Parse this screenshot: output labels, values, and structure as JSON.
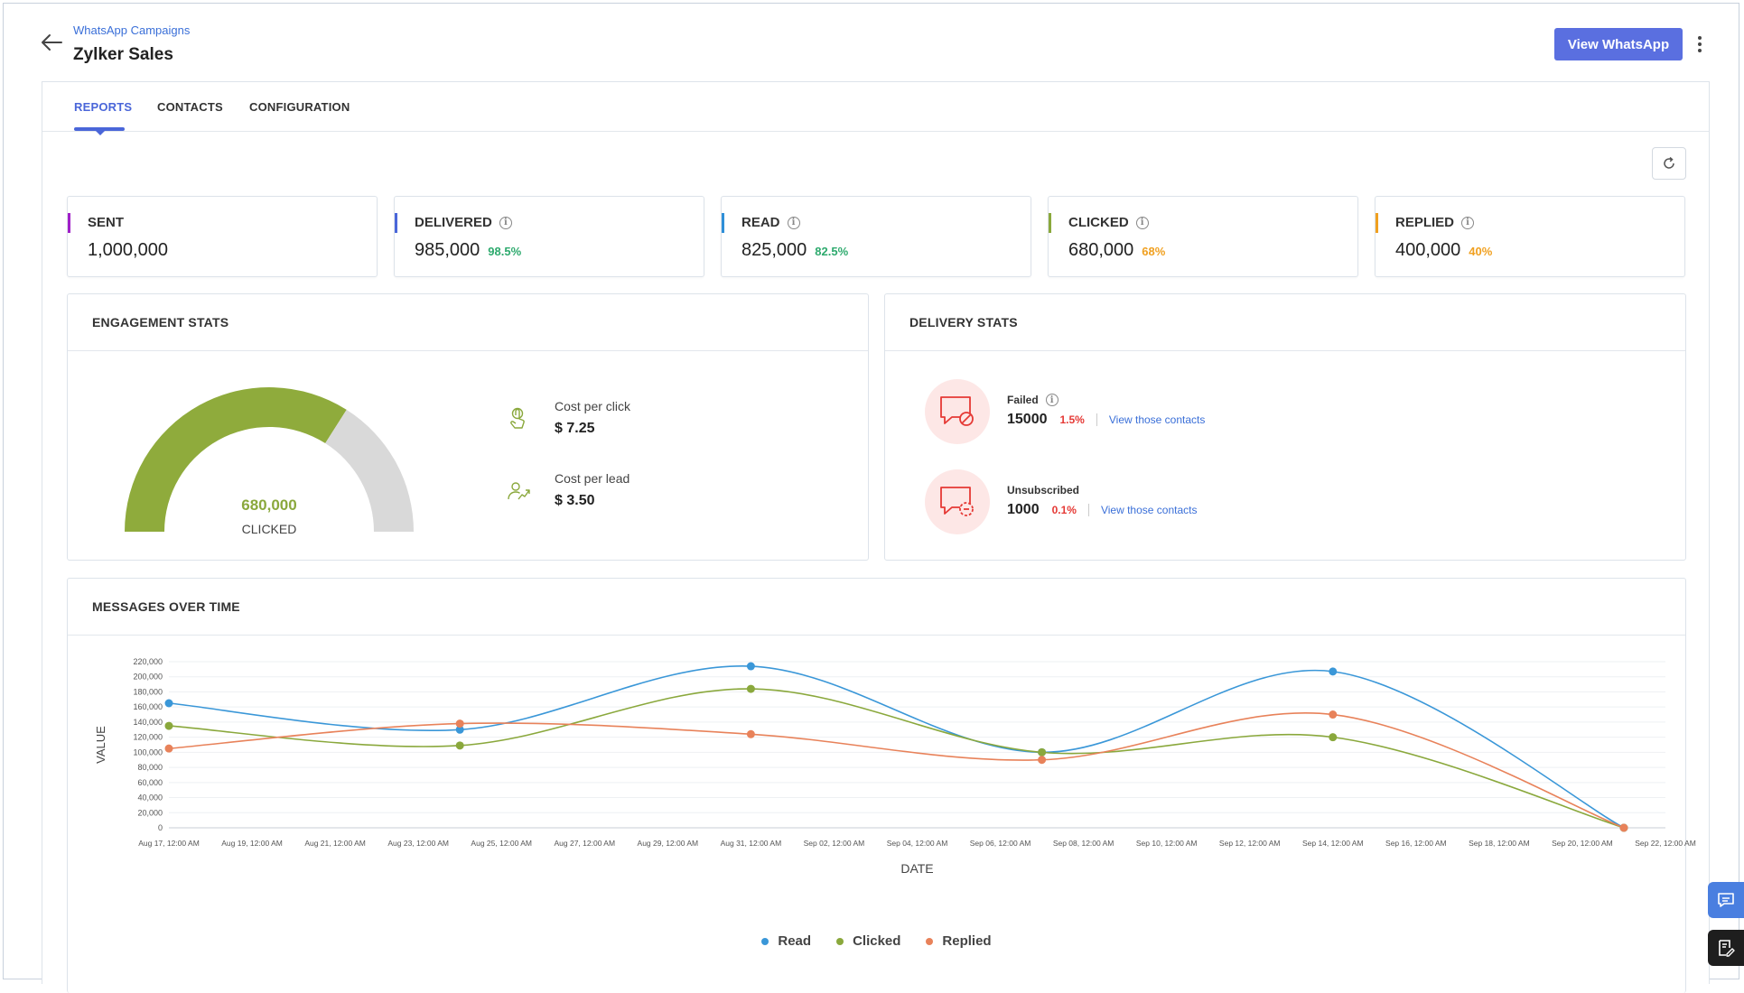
{
  "header": {
    "breadcrumb": "WhatsApp Campaigns",
    "title": "Zylker Sales",
    "view_button": "View WhatsApp"
  },
  "tabs": [
    {
      "label": "REPORTS",
      "active": true
    },
    {
      "label": "CONTACTS",
      "active": false
    },
    {
      "label": "CONFIGURATION",
      "active": false
    }
  ],
  "stats": [
    {
      "label": "SENT",
      "value": "1,000,000",
      "pct": "",
      "color": "#a020c8",
      "info": false
    },
    {
      "label": "DELIVERED",
      "value": "985,000",
      "pct": "98.5%",
      "color": "#4a66d9",
      "pct_color": "#2eaa6e",
      "info": true
    },
    {
      "label": "READ",
      "value": "825,000",
      "pct": "82.5%",
      "color": "#2f8fd8",
      "pct_color": "#2eaa6e",
      "info": true
    },
    {
      "label": "CLICKED",
      "value": "680,000",
      "pct": "68%",
      "color": "#8aa83c",
      "pct_color": "#f0a020",
      "info": true
    },
    {
      "label": "REPLIED",
      "value": "400,000",
      "pct": "40%",
      "color": "#f0a020",
      "pct_color": "#f0a020",
      "info": true
    }
  ],
  "engagement": {
    "title": "ENGAGEMENT STATS",
    "gauge_value": "680,000",
    "gauge_label": "CLICKED",
    "gauge_fraction": 0.68,
    "gauge_color": "#8fab3c",
    "gauge_track": "#d9d9d9",
    "cost_per_click_label": "Cost per click",
    "cost_per_click_value": "$ 7.25",
    "cost_per_lead_label": "Cost per lead",
    "cost_per_lead_value": "$ 3.50"
  },
  "delivery": {
    "title": "DELIVERY STATS",
    "failed_label": "Failed",
    "failed_count": "15000",
    "failed_pct": "1.5%",
    "unsub_label": "Unsubscribed",
    "unsub_count": "1000",
    "unsub_pct": "0.1%",
    "view_contacts": "View those contacts"
  },
  "messages": {
    "title": "MESSAGES OVER TIME"
  },
  "chart_data": {
    "type": "line",
    "xlabel": "DATE",
    "ylabel": "VALUE",
    "ylim": [
      0,
      220000
    ],
    "y_ticks": [
      "0",
      "20,000",
      "40,000",
      "60,000",
      "80,000",
      "100,000",
      "120,000",
      "140,000",
      "160,000",
      "180,000",
      "200,000",
      "220,000"
    ],
    "x_ticks": [
      "Aug 17, 12:00 AM",
      "Aug 19, 12:00 AM",
      "Aug 21, 12:00 AM",
      "Aug 23, 12:00 AM",
      "Aug 25, 12:00 AM",
      "Aug 27, 12:00 AM",
      "Aug 29, 12:00 AM",
      "Aug 31, 12:00 AM",
      "Sep 02, 12:00 AM",
      "Sep 04, 12:00 AM",
      "Sep 06, 12:00 AM",
      "Sep 08, 12:00 AM",
      "Sep 10, 12:00 AM",
      "Sep 12, 12:00 AM",
      "Sep 14, 12:00 AM",
      "Sep 16, 12:00 AM",
      "Sep 18, 12:00 AM",
      "Sep 20, 12:00 AM",
      "Sep 22, 12:00 AM"
    ],
    "x": [
      "Aug 17",
      "Aug 24",
      "Aug 31",
      "Sep 07",
      "Sep 14",
      "Sep 21"
    ],
    "grid": true,
    "legend": "bottom",
    "series": [
      {
        "name": "Read",
        "color": "#3a97d8",
        "values": [
          165000,
          130000,
          214000,
          100000,
          207000,
          0
        ]
      },
      {
        "name": "Clicked",
        "color": "#8aa83c",
        "values": [
          135000,
          109000,
          184000,
          100000,
          120000,
          0
        ]
      },
      {
        "name": "Replied",
        "color": "#e8825a",
        "values": [
          105000,
          138000,
          124000,
          90000,
          150000,
          0
        ]
      }
    ]
  }
}
